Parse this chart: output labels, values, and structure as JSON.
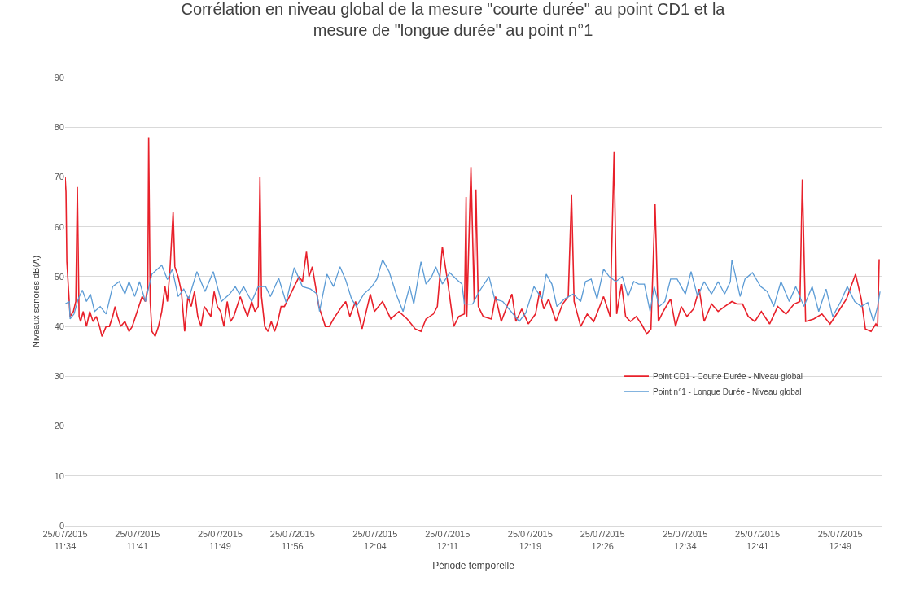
{
  "chart_data": {
    "type": "line",
    "title": "Corrélation en niveau global de la mesure \"courte durée\" au point CD1 et la\nmesure de \"longue durée\" au point n°1",
    "xlabel": "Période temporelle",
    "ylabel": "Niveaux sonores dB(A)",
    "xlim": [
      "2015-07-25T11:34:00",
      "2015-07-25T12:53:00"
    ],
    "ylim": [
      0,
      90
    ],
    "yticks": [
      0,
      10,
      20,
      30,
      40,
      50,
      60,
      70,
      80,
      90
    ],
    "xticks": [
      {
        "value": "2015-07-25T11:34",
        "label": "25/07/2015\n11:34"
      },
      {
        "value": "2015-07-25T11:41",
        "label": "25/07/2015\n11:41"
      },
      {
        "value": "2015-07-25T11:49",
        "label": "25/07/2015\n11:49"
      },
      {
        "value": "2015-07-25T11:56",
        "label": "25/07/2015\n11:56"
      },
      {
        "value": "2015-07-25T12:04",
        "label": "25/07/2015\n12:04"
      },
      {
        "value": "2015-07-25T12:11",
        "label": "25/07/2015\n12:11"
      },
      {
        "value": "2015-07-25T12:19",
        "label": "25/07/2015\n12:19"
      },
      {
        "value": "2015-07-25T12:26",
        "label": "25/07/2015\n12:26"
      },
      {
        "value": "2015-07-25T12:34",
        "label": "25/07/2015\n12:34"
      },
      {
        "value": "2015-07-25T12:41",
        "label": "25/07/2015\n12:41"
      },
      {
        "value": "2015-07-25T12:49",
        "label": "25/07/2015\n12:49"
      }
    ],
    "grid": "y",
    "legend": "right",
    "marker": "none",
    "line_style": "solid",
    "series": [
      {
        "name": "Point CD1 - Courte Durée - Niveau global",
        "color": "#e8202a",
        "x": [
          "2015-07-25T11:34:00",
          "2015-07-25T11:34:05",
          "2015-07-25T11:34:10",
          "2015-07-25T11:34:29",
          "2015-07-25T11:34:48",
          "2015-07-25T11:35:02",
          "2015-07-25T11:35:11",
          "2015-07-25T11:35:21",
          "2015-07-25T11:35:30",
          "2015-07-25T11:35:45",
          "2015-07-25T11:36:04",
          "2015-07-25T11:36:23",
          "2015-07-25T11:36:42",
          "2015-07-25T11:37:01",
          "2015-07-25T11:37:20",
          "2015-07-25T11:37:34",
          "2015-07-25T11:37:58",
          "2015-07-25T11:38:17",
          "2015-07-25T11:38:36",
          "2015-07-25T11:38:50",
          "2015-07-25T11:39:04",
          "2015-07-25T11:39:23",
          "2015-07-25T11:39:47",
          "2015-07-25T11:40:11",
          "2015-07-25T11:40:30",
          "2015-07-25T11:40:49",
          "2015-07-25T11:41:08",
          "2015-07-25T11:41:27",
          "2015-07-25T11:41:46",
          "2015-07-25T11:42:00",
          "2015-07-25T11:42:05",
          "2015-07-25T11:42:14",
          "2015-07-25T11:42:24",
          "2015-07-25T11:42:43",
          "2015-07-25T11:43:02",
          "2015-07-25T11:43:21",
          "2015-07-25T11:43:40",
          "2015-07-25T11:43:54",
          "2015-07-25T11:44:08",
          "2015-07-25T11:44:27",
          "2015-07-25T11:44:37",
          "2015-07-25T11:44:56",
          "2015-07-25T11:45:15",
          "2015-07-25T11:45:34",
          "2015-07-25T11:45:53",
          "2015-07-25T11:46:12",
          "2015-07-25T11:46:31",
          "2015-07-25T11:46:50",
          "2015-07-25T11:47:09",
          "2015-07-25T11:47:28",
          "2015-07-25T11:47:47",
          "2015-07-25T11:48:06",
          "2015-07-25T11:48:25",
          "2015-07-25T11:48:44",
          "2015-07-25T11:49:03",
          "2015-07-25T11:49:22",
          "2015-07-25T11:49:41",
          "2015-07-25T11:50:00",
          "2015-07-25T11:50:19",
          "2015-07-25T11:50:38",
          "2015-07-25T11:50:57",
          "2015-07-25T11:51:16",
          "2015-07-25T11:51:39",
          "2015-07-25T11:52:03",
          "2015-07-25T11:52:22",
          "2015-07-25T11:52:41",
          "2015-07-25T11:52:51",
          "2015-07-25T11:53:00",
          "2015-07-25T11:53:19",
          "2015-07-25T11:53:38",
          "2015-07-25T11:53:57",
          "2015-07-25T11:54:16",
          "2015-07-25T11:54:35",
          "2015-07-25T11:54:54",
          "2015-07-25T11:55:13",
          "2015-07-25T11:55:42",
          "2015-07-25T11:56:10",
          "2015-07-25T11:56:39",
          "2015-07-25T11:56:58",
          "2015-07-25T11:57:21",
          "2015-07-25T11:57:36",
          "2015-07-25T11:57:55",
          "2015-07-25T11:58:14",
          "2015-07-25T11:58:33",
          "2015-07-25T11:58:52",
          "2015-07-25T11:59:11",
          "2015-07-25T11:59:34",
          "2015-07-25T11:59:58",
          "2015-07-25T12:00:46",
          "2015-07-25T12:01:09",
          "2015-07-25T12:01:33",
          "2015-07-25T12:02:06",
          "2015-07-25T12:02:44",
          "2015-07-25T12:03:32",
          "2015-07-25T12:03:56",
          "2015-07-25T12:04:43",
          "2015-07-25T12:05:31",
          "2015-07-25T12:06:18",
          "2015-07-25T12:07:06",
          "2015-07-25T12:07:53",
          "2015-07-25T12:08:26",
          "2015-07-25T12:08:55",
          "2015-07-25T12:09:38",
          "2015-07-25T12:10:01",
          "2015-07-25T12:10:30",
          "2015-07-25T12:11:03",
          "2015-07-25T12:11:36",
          "2015-07-25T12:12:05",
          "2015-07-25T12:12:38",
          "2015-07-25T12:12:48",
          "2015-07-25T12:12:52",
          "2015-07-25T12:13:16",
          "2015-07-25T12:13:35",
          "2015-07-25T12:13:45",
          "2015-07-25T12:13:59",
          "2015-07-25T12:14:27",
          "2015-07-25T12:15:15",
          "2015-07-25T12:15:39",
          "2015-07-25T12:16:12",
          "2015-07-25T12:16:45",
          "2015-07-25T12:17:14",
          "2015-07-25T12:17:37",
          "2015-07-25T12:18:11",
          "2015-07-25T12:18:49",
          "2015-07-25T12:19:31",
          "2015-07-25T12:19:55",
          "2015-07-25T12:20:19",
          "2015-07-25T12:20:47",
          "2015-07-25T12:21:30",
          "2015-07-25T12:22:08",
          "2015-07-25T12:22:41",
          "2015-07-25T12:23:00",
          "2015-07-25T12:23:15",
          "2015-07-25T12:23:53",
          "2015-07-25T12:24:31",
          "2015-07-25T12:25:09",
          "2015-07-25T12:25:32",
          "2015-07-25T12:26:06",
          "2015-07-25T12:26:44",
          "2015-07-25T12:27:07",
          "2015-07-25T12:27:22",
          "2015-07-25T12:27:50",
          "2015-07-25T12:28:14",
          "2015-07-25T12:28:42",
          "2015-07-25T12:29:16",
          "2015-07-25T12:29:49",
          "2015-07-25T12:30:17",
          "2015-07-25T12:30:41",
          "2015-07-25T12:31:05",
          "2015-07-25T12:31:24",
          "2015-07-25T12:31:52",
          "2015-07-25T12:32:35",
          "2015-07-25T12:33:04",
          "2015-07-25T12:33:37",
          "2015-07-25T12:34:10",
          "2015-07-25T12:34:48",
          "2015-07-25T12:35:21",
          "2015-07-25T12:35:50",
          "2015-07-25T12:36:33",
          "2015-07-25T12:37:11",
          "2015-07-25T12:37:49",
          "2015-07-25T12:38:31",
          "2015-07-25T12:39:00",
          "2015-07-25T12:39:33",
          "2015-07-25T12:40:06",
          "2015-07-25T12:40:44",
          "2015-07-25T12:41:22",
          "2015-07-25T12:42:10",
          "2015-07-25T12:42:57",
          "2015-07-25T12:43:45",
          "2015-07-25T12:44:32",
          "2015-07-25T12:45:06",
          "2015-07-25T12:45:20",
          "2015-07-25T12:45:39",
          "2015-07-25T12:46:26",
          "2015-07-25T12:47:14",
          "2015-07-25T12:48:01",
          "2015-07-25T12:48:49",
          "2015-07-25T12:49:36",
          "2015-07-25T12:50:29",
          "2015-07-25T12:51:02",
          "2015-07-25T12:51:26",
          "2015-07-25T12:51:59",
          "2015-07-25T12:52:27",
          "2015-07-25T12:52:37",
          "2015-07-25T12:52:46"
        ],
        "values": [
          70,
          67,
          53,
          42,
          43,
          45,
          68,
          42,
          41,
          43,
          40,
          43,
          41,
          42,
          40,
          38,
          40,
          40,
          42,
          44,
          42,
          40,
          41,
          39,
          40,
          42,
          44,
          46,
          45,
          48,
          78,
          45,
          39,
          38,
          40,
          43,
          48,
          45,
          51,
          63,
          52,
          50,
          47,
          39,
          46,
          44,
          47,
          42,
          40,
          44,
          43,
          42,
          47,
          44,
          43,
          40,
          45,
          41,
          42,
          44,
          46,
          44,
          42,
          45,
          43,
          44,
          70,
          46,
          40,
          39,
          41,
          39,
          41,
          44,
          44,
          46,
          48,
          50,
          49,
          55,
          50,
          52,
          48,
          44,
          42,
          40,
          40,
          41.5,
          44,
          45,
          42,
          45,
          39.5,
          46.5,
          43,
          45,
          41.5,
          43,
          41.5,
          39.5,
          39,
          41.5,
          42.5,
          44,
          56,
          48.5,
          40,
          42,
          42.5,
          66,
          42,
          72,
          45,
          67.5,
          44,
          42,
          41.5,
          46,
          41,
          44,
          46.5,
          41,
          43.5,
          40.5,
          42.5,
          47,
          43.5,
          45.5,
          41,
          44.5,
          46,
          66.5,
          45,
          40,
          42.5,
          41,
          43,
          46,
          42,
          75,
          42.5,
          48.5,
          42,
          41,
          42,
          40.3,
          38.5,
          39.5,
          64.5,
          41,
          43,
          45.5,
          40,
          44,
          42,
          43.5,
          47.5,
          41,
          44.5,
          43,
          44,
          45,
          44.5,
          44.5,
          42,
          41,
          43,
          40.5,
          44,
          42.5,
          44.5,
          45,
          69.5,
          41,
          41.5,
          42.5,
          40.5,
          43,
          45.5,
          50.5,
          45.5,
          39.5,
          39,
          40.5,
          40,
          53.5
        ]
      },
      {
        "name": "Point n°1 - Longue Durée - Niveau global",
        "color": "#5b9bd5",
        "x": [
          "2015-07-25T11:34:00",
          "2015-07-25T11:34:24",
          "2015-07-25T11:34:29",
          "2015-07-25T11:34:52",
          "2015-07-25T11:35:16",
          "2015-07-25T11:35:40",
          "2015-07-25T11:36:04",
          "2015-07-25T11:36:27",
          "2015-07-25T11:36:51",
          "2015-07-25T11:37:24",
          "2015-07-25T11:37:58",
          "2015-07-25T11:38:36",
          "2015-07-25T11:39:14",
          "2015-07-25T11:39:47",
          "2015-07-25T11:40:11",
          "2015-07-25T11:40:44",
          "2015-07-25T11:41:12",
          "2015-07-25T11:41:46",
          "2015-07-25T11:42:24",
          "2015-07-25T11:43:21",
          "2015-07-25T11:43:54",
          "2015-07-25T11:44:22",
          "2015-07-25T11:44:56",
          "2015-07-25T11:45:29",
          "2015-07-25T11:45:57",
          "2015-07-25T11:46:45",
          "2015-07-25T11:47:32",
          "2015-07-25T11:48:20",
          "2015-07-25T11:49:07",
          "2015-07-25T11:49:55",
          "2015-07-25T11:50:28",
          "2015-07-25T11:50:52",
          "2015-07-25T11:51:16",
          "2015-07-25T11:52:03",
          "2015-07-25T11:52:41",
          "2015-07-25T11:53:24",
          "2015-07-25T11:53:52",
          "2015-07-25T11:54:40",
          "2015-07-25T11:55:23",
          "2015-07-25T11:56:10",
          "2015-07-25T11:56:58",
          "2015-07-25T11:57:45",
          "2015-07-25T11:58:23",
          "2015-07-25T11:58:37",
          "2015-07-25T11:59:20",
          "2015-07-25T11:59:58",
          "2015-07-25T12:00:36",
          "2015-07-25T12:01:09",
          "2015-07-25T12:01:43",
          "2015-07-25T12:02:11",
          "2015-07-25T12:02:54",
          "2015-07-25T12:03:41",
          "2015-07-25T12:04:10",
          "2015-07-25T12:04:43",
          "2015-07-25T12:05:21",
          "2015-07-25T12:06:04",
          "2015-07-25T12:06:42",
          "2015-07-25T12:07:20",
          "2015-07-25T12:07:44",
          "2015-07-25T12:08:26",
          "2015-07-25T12:08:55",
          "2015-07-25T12:09:28",
          "2015-07-25T12:09:52",
          "2015-07-25T12:10:30",
          "2015-07-25T12:11:13",
          "2015-07-25T12:11:51",
          "2015-07-25T12:12:24",
          "2015-07-25T12:12:38",
          "2015-07-25T12:13:26",
          "2015-07-25T12:14:04",
          "2015-07-25T12:15:01",
          "2015-07-25T12:15:34",
          "2015-07-25T12:16:21",
          "2015-07-25T12:17:09",
          "2015-07-25T12:17:56",
          "2015-07-25T12:18:34",
          "2015-07-25T12:19:22",
          "2015-07-25T12:20:09",
          "2015-07-25T12:20:33",
          "2015-07-25T12:21:06",
          "2015-07-25T12:21:35",
          "2015-07-25T12:22:18",
          "2015-07-25T12:23:10",
          "2015-07-25T12:23:53",
          "2015-07-25T12:24:21",
          "2015-07-25T12:24:54",
          "2015-07-25T12:25:28",
          "2015-07-25T12:26:06",
          "2015-07-25T12:26:39",
          "2015-07-25T12:27:17",
          "2015-07-25T12:27:55",
          "2015-07-25T12:28:28",
          "2015-07-25T12:29:01",
          "2015-07-25T12:29:30",
          "2015-07-25T12:30:03",
          "2015-07-25T12:30:36",
          "2015-07-25T12:31:00",
          "2015-07-25T12:31:29",
          "2015-07-25T12:32:02",
          "2015-07-25T12:32:35",
          "2015-07-25T12:33:13",
          "2015-07-25T12:34:01",
          "2015-07-25T12:34:34",
          "2015-07-25T12:35:12",
          "2015-07-25T12:35:50",
          "2015-07-25T12:36:33",
          "2015-07-25T12:37:11",
          "2015-07-25T12:37:49",
          "2015-07-25T12:38:22",
          "2015-07-25T12:38:31",
          "2015-07-25T12:39:19",
          "2015-07-25T12:39:47",
          "2015-07-25T12:40:30",
          "2015-07-25T12:41:18",
          "2015-07-25T12:41:56",
          "2015-07-25T12:42:34",
          "2015-07-25T12:43:16",
          "2015-07-25T12:44:04",
          "2015-07-25T12:44:42",
          "2015-07-25T12:45:29",
          "2015-07-25T12:46:17",
          "2015-07-25T12:46:55",
          "2015-07-25T12:47:38",
          "2015-07-25T12:48:16",
          "2015-07-25T12:49:03",
          "2015-07-25T12:49:41",
          "2015-07-25T12:50:24",
          "2015-07-25T12:51:02",
          "2015-07-25T12:51:40",
          "2015-07-25T12:52:13",
          "2015-07-25T12:52:37",
          "2015-07-25T12:52:51"
        ],
        "values": [
          44.5,
          45,
          41.5,
          42.5,
          45.5,
          47.3,
          45,
          46.5,
          43,
          44,
          42.5,
          48,
          49,
          46.5,
          49,
          46,
          49,
          45,
          50.5,
          52.3,
          49.4,
          51.5,
          46,
          47.5,
          45.5,
          51,
          47,
          51,
          45,
          46.5,
          48,
          46.5,
          48,
          45,
          48,
          48,
          46,
          49.7,
          44.8,
          51.8,
          48,
          47.5,
          46.5,
          43,
          50.5,
          48,
          52,
          49.3,
          45.5,
          44,
          46.5,
          48,
          49.5,
          53.4,
          51,
          46.3,
          43,
          48,
          44.5,
          53,
          48.5,
          50,
          52,
          48.5,
          50.8,
          49.5,
          48.5,
          44.5,
          44.5,
          47,
          50,
          45.5,
          45,
          43,
          41,
          42.7,
          48,
          45.5,
          50.5,
          48.5,
          44,
          45.5,
          46.5,
          45,
          49,
          49.5,
          45.5,
          51.5,
          50,
          49,
          50,
          46,
          49,
          48.5,
          48.5,
          43,
          48,
          44,
          45,
          49.5,
          49.5,
          46.5,
          51,
          46,
          49,
          46.5,
          49,
          46.5,
          49,
          53.4,
          46,
          49.5,
          50.8,
          48,
          47,
          44,
          49,
          45,
          48,
          44,
          48,
          43,
          47.5,
          42,
          45,
          48,
          45,
          44,
          44.8,
          41,
          44,
          47
        ]
      }
    ]
  }
}
